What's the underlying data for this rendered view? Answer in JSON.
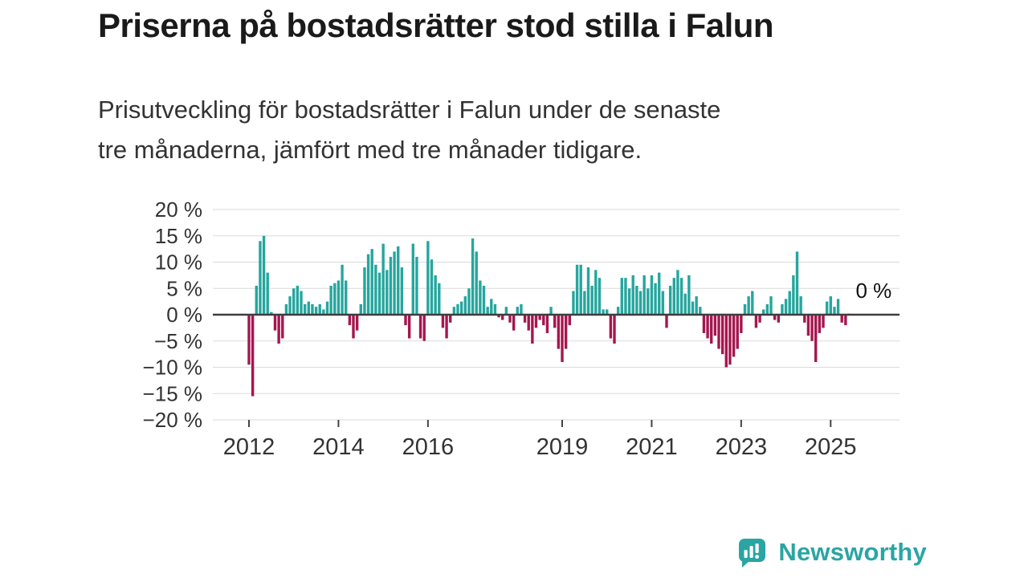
{
  "header": {
    "title": "Priserna på bostadsrätter stod stilla i Falun",
    "subtitle_line1": "Prisutveckling för bostadsrätter i Falun under de senaste",
    "subtitle_line2": "tre månaderna, jämfört med tre månader tidigare."
  },
  "chart_data": {
    "type": "bar",
    "title": "Priserna på bostadsrätter stod stilla i Falun",
    "subtitle": "Prisutveckling för bostadsrätter i Falun under de senaste tre månaderna, jämfört med tre månader tidigare.",
    "xlabel": "",
    "ylabel": "",
    "unit": "%",
    "ylim": [
      -20,
      20
    ],
    "grid": "horizontal",
    "y_ticks": [
      20,
      15,
      10,
      5,
      0,
      -5,
      -10,
      -15,
      -20
    ],
    "y_tick_labels": [
      "20 %",
      "15 %",
      "10 %",
      "5 %",
      "0 %",
      "−5 %",
      "−10 %",
      "−15 %",
      "−20 %"
    ],
    "x_tick_labels": [
      "2012",
      "2014",
      "2016",
      "2019",
      "2021",
      "2023",
      "2025"
    ],
    "x_tick_month_index": [
      0,
      24,
      48,
      84,
      108,
      132,
      156
    ],
    "x_start": "2012-01",
    "frequency": "monthly",
    "annotation": {
      "text": "0 %",
      "meaning": "latest value"
    },
    "colors": {
      "positive": "#26a69e",
      "negative": "#a5164f"
    },
    "values": [
      -9.5,
      -15.5,
      5.5,
      14.0,
      15.0,
      8.0,
      0.5,
      -3.0,
      -5.5,
      -4.5,
      2.0,
      3.5,
      5.0,
      5.5,
      4.5,
      2.0,
      2.5,
      2.0,
      1.5,
      2.0,
      1.0,
      2.5,
      5.5,
      6.0,
      6.5,
      9.5,
      6.5,
      -2.0,
      -4.5,
      -3.0,
      2.0,
      9.0,
      11.5,
      12.5,
      9.5,
      8.0,
      13.5,
      8.5,
      11.0,
      12.0,
      13.0,
      9.0,
      -2.0,
      -4.5,
      13.5,
      11.0,
      -4.5,
      -5.0,
      14.0,
      10.5,
      7.5,
      6.0,
      -2.5,
      -4.5,
      -1.5,
      1.5,
      2.0,
      2.5,
      3.5,
      5.0,
      14.5,
      12.0,
      6.5,
      5.5,
      1.5,
      3.0,
      2.0,
      -0.5,
      -1.0,
      1.5,
      -1.5,
      -3.0,
      1.5,
      2.0,
      -1.5,
      -3.0,
      -5.5,
      -2.5,
      -1.0,
      -2.0,
      -3.5,
      1.5,
      -2.5,
      -6.5,
      -9.0,
      -6.5,
      -2.0,
      4.5,
      9.5,
      9.5,
      4.5,
      9.0,
      5.5,
      8.5,
      7.0,
      1.0,
      1.0,
      -4.5,
      -5.5,
      1.5,
      7.0,
      7.0,
      5.0,
      7.5,
      5.5,
      4.5,
      7.5,
      5.0,
      7.5,
      6.0,
      8.0,
      4.5,
      -2.5,
      5.5,
      7.0,
      8.5,
      7.0,
      4.0,
      7.5,
      2.5,
      3.5,
      1.5,
      -3.5,
      -4.5,
      -5.5,
      -4.0,
      -6.5,
      -7.5,
      -10.0,
      -9.5,
      -8.0,
      -6.5,
      -3.5,
      2.0,
      3.5,
      4.5,
      -2.5,
      -1.5,
      1.0,
      2.0,
      3.5,
      -1.0,
      -1.5,
      2.0,
      3.0,
      4.5,
      7.5,
      12.0,
      3.5,
      -1.5,
      -4.0,
      -5.0,
      -9.0,
      -3.5,
      -2.5,
      2.5,
      3.5,
      1.5,
      3.0,
      -1.5,
      -2.0,
      0.2
    ]
  },
  "footer": {
    "brand": "Newsworthy",
    "brand_color": "#2aa5a4"
  }
}
